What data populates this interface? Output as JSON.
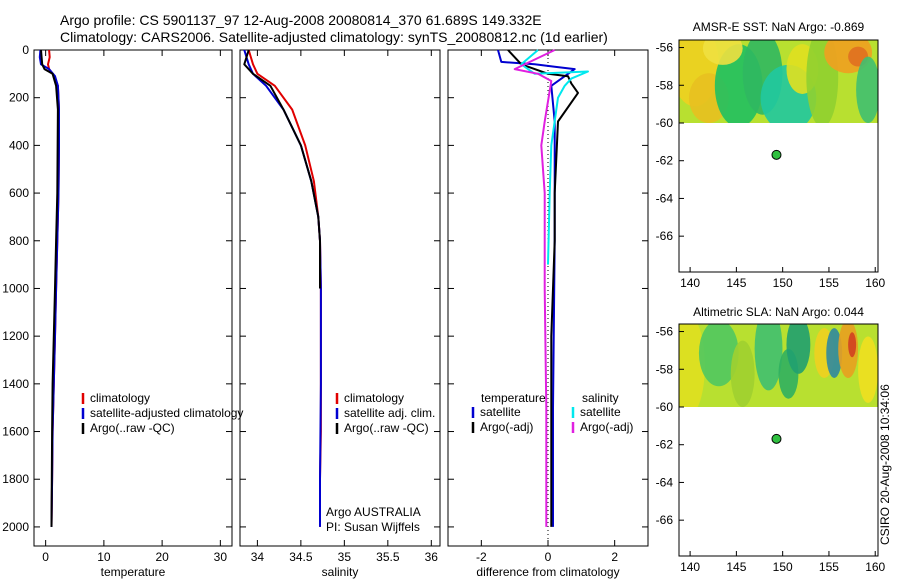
{
  "title_line1": "Argo profile: CS 5901137_97 12-Aug-2008 20080814_370 61.689S 149.332E",
  "title_line2": "Climatology: CARS2006. Satellite-adjusted climatology: synTS_20080812.nc (1d earlier)",
  "footer_vertical": "CSIRO 20-Aug-2008 10:34:06",
  "colors": {
    "red": "#e00000",
    "blue": "#0000d0",
    "black": "#000000",
    "cyan": "#00e8ee",
    "magenta": "#e020e0"
  },
  "chart_data": [
    {
      "type": "line",
      "name": "temperature",
      "xlabel": "temperature",
      "ylabel": "",
      "xlim": [
        -2,
        32
      ],
      "ylim": [
        2080,
        0
      ],
      "xticks": [
        0,
        10,
        20,
        30
      ],
      "yticks": [
        0,
        200,
        400,
        600,
        800,
        1000,
        1200,
        1400,
        1600,
        1800,
        2000
      ],
      "legend": {
        "position": "lower-left",
        "entries": [
          {
            "label": "climatology",
            "color": "#e00000"
          },
          {
            "label": "satellite-adjusted climatology",
            "color": "#0000d0"
          },
          {
            "label": "Argo(..raw -QC)",
            "color": "#000000"
          }
        ]
      },
      "series": [
        {
          "name": "climatology",
          "color": "#e00000",
          "x": [
            0.6,
            0.7,
            0.4,
            0.6,
            1.5,
            2.1,
            2.3,
            2.3,
            2.2,
            2.0,
            1.8,
            1.6,
            1.4,
            1.2,
            1.1,
            1.0
          ],
          "y": [
            0,
            30,
            60,
            80,
            110,
            150,
            250,
            400,
            600,
            800,
            1000,
            1200,
            1400,
            1600,
            1800,
            2000
          ]
        },
        {
          "name": "satellite-adjusted climatology",
          "color": "#0000d0",
          "x": [
            -0.9,
            -1.0,
            -0.8,
            0.6,
            1.6,
            2.1,
            2.3,
            2.3,
            2.2,
            2.0,
            1.8,
            1.6,
            1.4,
            1.2,
            1.1,
            1.0
          ],
          "y": [
            0,
            30,
            60,
            80,
            110,
            150,
            250,
            400,
            600,
            800,
            1000,
            1200,
            1400,
            1600,
            1800,
            2000
          ]
        },
        {
          "name": "Argo(..raw -QC)",
          "color": "#000000",
          "x": [
            -0.8,
            -0.7,
            -0.6,
            -0.2,
            1.2,
            1.8,
            2.1,
            2.0,
            1.8,
            1.6,
            1.4,
            1.2,
            1.1,
            1.0
          ],
          "y": [
            0,
            30,
            60,
            80,
            100,
            150,
            250,
            600,
            800,
            1000,
            1200,
            1400,
            1600,
            2000
          ]
        }
      ]
    },
    {
      "type": "line",
      "name": "salinity",
      "xlabel": "salinity",
      "ylabel": "",
      "xlim": [
        33.8,
        36.1
      ],
      "ylim": [
        2080,
        0
      ],
      "xticks": [
        34,
        34.5,
        35,
        35.5,
        36
      ],
      "legend": {
        "position": "lower-left",
        "entries": [
          {
            "label": "climatology",
            "color": "#e00000"
          },
          {
            "label": "satellite adj. clim.",
            "color": "#0000d0"
          },
          {
            "label": "Argo(..raw -QC)",
            "color": "#000000"
          }
        ]
      },
      "annotation": [
        "Argo AUSTRALIA",
        "PI: Susan Wijffels"
      ],
      "series": [
        {
          "name": "climatology",
          "color": "#e00000",
          "x": [
            33.9,
            33.95,
            34.0,
            34.2,
            34.4,
            34.55,
            34.65,
            34.7,
            34.72,
            34.73,
            34.73,
            34.73,
            34.72,
            34.72
          ],
          "y": [
            0,
            60,
            100,
            150,
            250,
            400,
            550,
            700,
            800,
            1000,
            1300,
            1600,
            1800,
            2000
          ]
        },
        {
          "name": "satellite adj. clim.",
          "color": "#0000d0",
          "x": [
            33.85,
            33.9,
            33.95,
            34.1,
            34.3,
            34.5,
            34.62,
            34.7,
            34.72,
            34.73,
            34.73,
            34.72,
            34.72
          ],
          "y": [
            0,
            60,
            100,
            150,
            250,
            400,
            550,
            700,
            800,
            1000,
            1400,
            1800,
            2000
          ]
        },
        {
          "name": "Argo(..raw -QC)",
          "color": "#000000",
          "x": [
            33.9,
            33.85,
            33.95,
            34.15,
            34.3,
            34.5,
            34.62,
            34.7,
            34.72,
            34.72
          ],
          "y": [
            0,
            60,
            100,
            150,
            250,
            400,
            550,
            700,
            800,
            1000
          ]
        }
      ]
    },
    {
      "type": "line",
      "name": "difference from climatology",
      "xlabel": "difference from climatology",
      "ylabel": "",
      "xlim": [
        -3,
        3
      ],
      "ylim": [
        2080,
        0
      ],
      "xticks": [
        -2,
        0,
        2
      ],
      "zero_line": true,
      "legend": {
        "position": "lower-left",
        "entries": [
          {
            "group": "temperature",
            "label": "satellite",
            "color": "#0000d0"
          },
          {
            "group": "temperature",
            "label": "Argo(-adj)",
            "color": "#000000"
          },
          {
            "group": "salinity",
            "label": "satellite",
            "color": "#00e8ee"
          },
          {
            "group": "salinity",
            "label": "Argo(-adj)",
            "color": "#e020e0"
          }
        ]
      },
      "legend_headers": [
        "temperature",
        "salinity"
      ],
      "series": [
        {
          "name": "temperature satellite",
          "color": "#0000d0",
          "x": [
            -1.5,
            -1.4,
            -0.4,
            0.2,
            0.8,
            0.1,
            0.2,
            0.2,
            0.15,
            0.15
          ],
          "y": [
            0,
            50,
            60,
            70,
            80,
            150,
            300,
            800,
            1500,
            2000
          ]
        },
        {
          "name": "temperature Argo(-adj)",
          "color": "#000000",
          "x": [
            -1.2,
            -0.8,
            0.0,
            0.6,
            0.7,
            0.9,
            0.3,
            0.2,
            0.2,
            0.1,
            0.1
          ],
          "y": [
            0,
            60,
            100,
            110,
            140,
            180,
            300,
            600,
            800,
            1200,
            2000
          ]
        },
        {
          "name": "salinity satellite",
          "color": "#00e8ee",
          "x": [
            -0.3,
            -0.8,
            -0.4,
            1.2,
            0.7,
            0.5,
            0.3,
            0.1,
            0.05,
            0.0
          ],
          "y": [
            0,
            60,
            100,
            90,
            120,
            150,
            200,
            400,
            600,
            900
          ]
        },
        {
          "name": "salinity Argo(-adj)",
          "color": "#e020e0",
          "x": [
            0.2,
            -1.0,
            -0.3,
            0.1,
            -0.1,
            -0.2,
            -0.1,
            -0.1,
            -0.05,
            -0.05
          ],
          "y": [
            0,
            80,
            100,
            130,
            300,
            400,
            600,
            1000,
            1500,
            2000
          ]
        }
      ]
    }
  ],
  "maps": [
    {
      "title": "AMSR-E SST: NaN Argo: -0.869",
      "xlim": [
        138.8,
        160.3
      ],
      "ylim": [
        -67.9,
        -55.6
      ],
      "xticks": [
        140,
        145,
        150,
        155,
        160
      ],
      "yticks": [
        -56,
        -58,
        -60,
        -62,
        -64,
        -66
      ],
      "field_extent_lat": [
        -60,
        -55.6
      ],
      "point": {
        "lon": 149.332,
        "lat": -61.689
      }
    },
    {
      "title": "Altimetric SLA: NaN Argo: 0.044",
      "xlim": [
        138.8,
        160.3
      ],
      "ylim": [
        -67.9,
        -55.6
      ],
      "xticks": [
        140,
        145,
        150,
        155,
        160
      ],
      "yticks": [
        -56,
        -58,
        -60,
        -62,
        -64,
        -66
      ],
      "field_extent_lat": [
        -60,
        -55.6
      ],
      "point": {
        "lon": 149.332,
        "lat": -61.689
      }
    }
  ]
}
